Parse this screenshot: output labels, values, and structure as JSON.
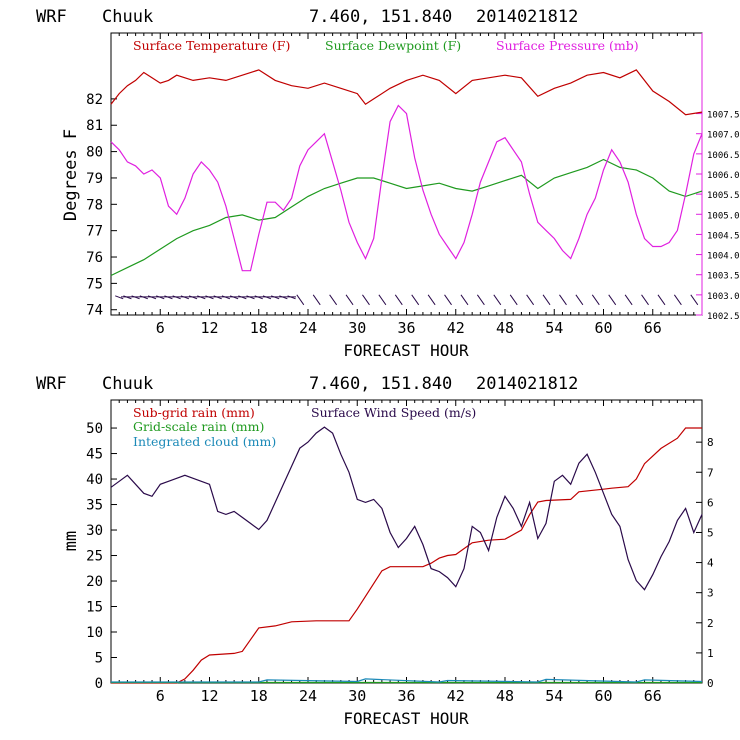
{
  "charts": [
    {
      "header_model": "WRF",
      "header_station": "Chuuk",
      "header_coords": "7.460, 151.840",
      "header_run": "2014021812"
    },
    {
      "header_model": "WRF",
      "header_station": "Chuuk",
      "header_coords": "7.460, 151.840",
      "header_run": "2014021812"
    }
  ],
  "colors": {
    "temperature": "#c00000",
    "dewpoint": "#1f9a1f",
    "pressure": "#e020e0",
    "wind_barbs": "#2a0a4a",
    "subgrid_rain": "#c00000",
    "gridscale_rain": "#1f9a1f",
    "cloud": "#1c8ab8",
    "wind_speed": "#2a0a4a"
  },
  "chart_data": [
    {
      "type": "line",
      "xlabel": "FORECAST HOUR",
      "ylabel": "Degrees F",
      "xlim": [
        0,
        72
      ],
      "ylim": [
        73.8,
        84.5
      ],
      "y2lim": [
        1002.5,
        1009.5
      ],
      "x_ticks": [
        6,
        12,
        18,
        24,
        30,
        36,
        42,
        48,
        54,
        60,
        66
      ],
      "y_ticks": [
        74,
        75,
        76,
        77,
        78,
        79,
        80,
        81,
        82
      ],
      "y2_ticks": [
        "1002.5",
        "1003.0",
        "1003.5",
        "1004.0",
        "1004.5",
        "1005.0",
        "1005.5",
        "1006.0",
        "1006.5",
        "1007.0",
        "1007.5"
      ],
      "legend": [
        "Surface Temperature (F)",
        "Surface Dewpoint (F)",
        "Surface Pressure (mb)"
      ],
      "series": [
        {
          "name": "Surface Temperature (F)",
          "axis": "left",
          "x": [
            0,
            1,
            2,
            3,
            4,
            5,
            6,
            7,
            8,
            9,
            10,
            12,
            14,
            16,
            18,
            20,
            22,
            24,
            26,
            28,
            30,
            31,
            32,
            34,
            36,
            38,
            40,
            42,
            44,
            46,
            48,
            50,
            52,
            54,
            56,
            58,
            60,
            62,
            64,
            66,
            68,
            70,
            72
          ],
          "values": [
            81.8,
            82.2,
            82.5,
            82.7,
            83.0,
            82.8,
            82.6,
            82.7,
            82.9,
            82.8,
            82.7,
            82.8,
            82.7,
            82.9,
            83.1,
            82.7,
            82.5,
            82.4,
            82.6,
            82.4,
            82.2,
            81.8,
            82.0,
            82.4,
            82.7,
            82.9,
            82.7,
            82.2,
            82.7,
            82.8,
            82.9,
            82.8,
            82.1,
            82.4,
            82.6,
            82.9,
            83.0,
            82.8,
            83.1,
            82.3,
            81.9,
            81.4,
            81.5
          ]
        },
        {
          "name": "Surface Dewpoint (F)",
          "axis": "left",
          "x": [
            0,
            2,
            4,
            6,
            8,
            10,
            12,
            14,
            16,
            18,
            20,
            22,
            24,
            26,
            28,
            30,
            32,
            34,
            36,
            38,
            40,
            42,
            44,
            46,
            48,
            50,
            52,
            54,
            56,
            58,
            60,
            62,
            64,
            66,
            68,
            70,
            72
          ],
          "values": [
            75.3,
            75.6,
            75.9,
            76.3,
            76.7,
            77.0,
            77.2,
            77.5,
            77.6,
            77.4,
            77.5,
            77.9,
            78.3,
            78.6,
            78.8,
            79.0,
            79.0,
            78.8,
            78.6,
            78.7,
            78.8,
            78.6,
            78.5,
            78.7,
            78.9,
            79.1,
            78.6,
            79.0,
            79.2,
            79.4,
            79.7,
            79.4,
            79.3,
            79.0,
            78.5,
            78.3,
            78.5
          ]
        },
        {
          "name": "Surface Pressure (mb)",
          "axis": "right",
          "x": [
            0,
            1,
            2,
            3,
            4,
            5,
            6,
            7,
            8,
            9,
            10,
            11,
            12,
            13,
            14,
            15,
            16,
            17,
            18,
            19,
            20,
            21,
            22,
            23,
            24,
            25,
            26,
            27,
            28,
            29,
            30,
            31,
            32,
            33,
            34,
            35,
            36,
            37,
            38,
            39,
            40,
            41,
            42,
            43,
            44,
            45,
            46,
            47,
            48,
            49,
            50,
            51,
            52,
            53,
            54,
            55,
            56,
            57,
            58,
            59,
            60,
            61,
            62,
            63,
            64,
            65,
            66,
            67,
            68,
            69,
            70,
            71,
            72
          ],
          "values": [
            1006.8,
            1006.6,
            1006.3,
            1006.2,
            1006.0,
            1006.1,
            1005.9,
            1005.2,
            1005.0,
            1005.4,
            1006.0,
            1006.3,
            1006.1,
            1005.8,
            1005.2,
            1004.4,
            1003.6,
            1003.6,
            1004.5,
            1005.3,
            1005.3,
            1005.1,
            1005.4,
            1006.2,
            1006.6,
            1006.8,
            1007.0,
            1006.3,
            1005.6,
            1004.8,
            1004.3,
            1003.9,
            1004.4,
            1005.9,
            1007.3,
            1007.7,
            1007.5,
            1006.4,
            1005.6,
            1005.0,
            1004.5,
            1004.2,
            1003.9,
            1004.3,
            1005.0,
            1005.8,
            1006.3,
            1006.8,
            1006.9,
            1006.6,
            1006.3,
            1005.5,
            1004.8,
            1004.6,
            1004.4,
            1004.1,
            1003.9,
            1004.4,
            1005.0,
            1005.4,
            1006.1,
            1006.6,
            1006.3,
            1005.8,
            1005.0,
            1004.4,
            1004.2,
            1004.2,
            1004.3,
            1004.6,
            1005.5,
            1006.5,
            1007.0
          ]
        }
      ]
    },
    {
      "type": "line",
      "xlabel": "FORECAST HOUR",
      "ylabel": "mm",
      "xlim": [
        0,
        72
      ],
      "ylim": [
        0,
        55.5
      ],
      "y2lim": [
        0,
        9.4
      ],
      "x_ticks": [
        6,
        12,
        18,
        24,
        30,
        36,
        42,
        48,
        54,
        60,
        66
      ],
      "y_ticks": [
        0,
        5,
        10,
        15,
        20,
        25,
        30,
        35,
        40,
        45,
        50
      ],
      "y2_ticks": [
        0,
        1,
        2,
        3,
        4,
        5,
        6,
        7,
        8
      ],
      "legend": [
        "Sub-grid rain (mm)",
        "Surface Wind Speed (m/s)",
        "Grid-scale rain (mm)",
        "Integrated cloud (mm)"
      ],
      "series": [
        {
          "name": "Sub-grid rain (mm)",
          "axis": "left",
          "x": [
            0,
            5,
            8,
            9,
            10,
            11,
            12,
            15,
            16,
            17,
            18,
            20,
            22,
            25,
            29,
            30,
            31,
            32,
            33,
            34,
            38,
            39,
            40,
            41,
            42,
            44,
            46,
            48,
            50,
            51,
            52,
            53,
            56,
            57,
            60,
            61,
            63,
            64,
            65,
            67,
            69,
            70,
            72
          ],
          "values": [
            0,
            0,
            0,
            0.8,
            2.5,
            4.5,
            5.5,
            5.8,
            6.2,
            8.5,
            10.8,
            11.2,
            12.0,
            12.2,
            12.2,
            14.5,
            17.0,
            19.5,
            22.0,
            22.8,
            22.8,
            23.5,
            24.5,
            25.0,
            25.2,
            27.5,
            28.0,
            28.2,
            30.0,
            33.0,
            35.5,
            35.8,
            36.0,
            37.5,
            38.0,
            38.2,
            38.5,
            40.0,
            43.0,
            46.0,
            48.0,
            50.0,
            50.0
          ]
        },
        {
          "name": "Grid-scale rain (mm)",
          "axis": "left",
          "x": [
            0,
            72
          ],
          "values": [
            0.1,
            0.1
          ]
        },
        {
          "name": "Integrated cloud (mm)",
          "axis": "left",
          "x": [
            0,
            10,
            18,
            19,
            30,
            31,
            40,
            41,
            52,
            53,
            64,
            65,
            72
          ],
          "values": [
            0.2,
            0.2,
            0.2,
            0.6,
            0.3,
            0.8,
            0.2,
            0.5,
            0.2,
            0.7,
            0.2,
            0.6,
            0.3
          ]
        },
        {
          "name": "Surface Wind Speed (m/s)",
          "axis": "right",
          "x": [
            0,
            1,
            2,
            3,
            4,
            5,
            6,
            7,
            8,
            9,
            10,
            11,
            12,
            13,
            14,
            15,
            16,
            17,
            18,
            19,
            20,
            21,
            22,
            23,
            24,
            25,
            26,
            27,
            28,
            29,
            30,
            31,
            32,
            33,
            34,
            35,
            36,
            37,
            38,
            39,
            40,
            41,
            42,
            43,
            44,
            45,
            46,
            47,
            48,
            49,
            50,
            51,
            52,
            53,
            54,
            55,
            56,
            57,
            58,
            59,
            60,
            61,
            62,
            63,
            64,
            65,
            66,
            67,
            68,
            69,
            70,
            71,
            72
          ],
          "values": [
            6.5,
            6.7,
            6.9,
            6.6,
            6.3,
            6.2,
            6.6,
            6.7,
            6.8,
            6.9,
            6.8,
            6.7,
            6.6,
            5.7,
            5.6,
            5.7,
            5.5,
            5.3,
            5.1,
            5.4,
            6.0,
            6.6,
            7.2,
            7.8,
            8.0,
            8.3,
            8.5,
            8.3,
            7.6,
            7.0,
            6.1,
            6.0,
            6.1,
            5.8,
            5.0,
            4.5,
            4.8,
            5.2,
            4.6,
            3.8,
            3.7,
            3.5,
            3.2,
            3.8,
            5.2,
            5.0,
            4.4,
            5.5,
            6.2,
            5.8,
            5.2,
            6.0,
            4.8,
            5.3,
            6.7,
            6.9,
            6.6,
            7.3,
            7.6,
            7.0,
            6.3,
            5.6,
            5.2,
            4.1,
            3.4,
            3.1,
            3.6,
            4.2,
            4.7,
            5.4,
            5.8,
            5.0,
            5.6
          ]
        }
      ]
    }
  ]
}
